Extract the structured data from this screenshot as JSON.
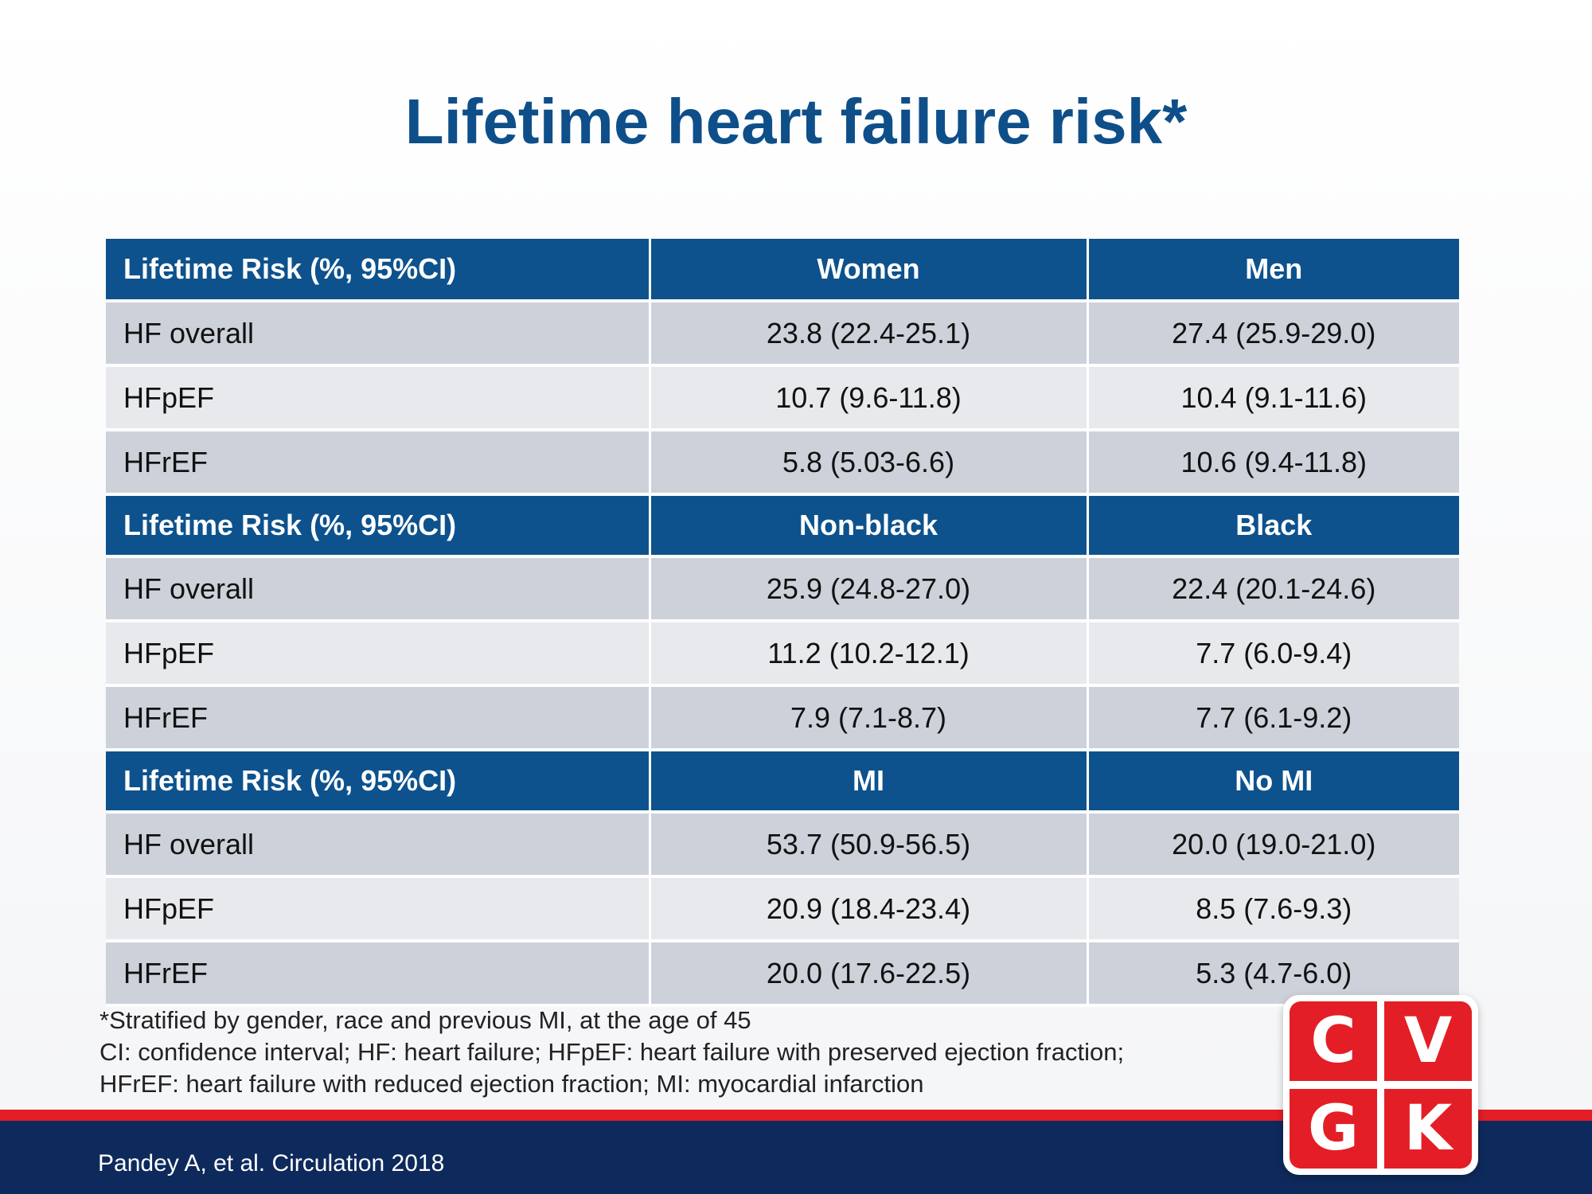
{
  "title": "Lifetime heart failure risk*",
  "table": {
    "sections": [
      {
        "header": [
          "Lifetime Risk (%, 95%CI)",
          "Women",
          "Men"
        ],
        "rows": [
          [
            "HF overall",
            "23.8 (22.4-25.1)",
            "27.4 (25.9-29.0)"
          ],
          [
            "HFpEF",
            "10.7 (9.6-11.8)",
            "10.4 (9.1-11.6)"
          ],
          [
            "HFrEF",
            "5.8 (5.03-6.6)",
            "10.6 (9.4-11.8)"
          ]
        ]
      },
      {
        "header": [
          "Lifetime Risk (%, 95%CI)",
          "Non-black",
          "Black"
        ],
        "rows": [
          [
            "HF overall",
            "25.9 (24.8-27.0)",
            "22.4 (20.1-24.6)"
          ],
          [
            "HFpEF",
            "11.2 (10.2-12.1)",
            "7.7 (6.0-9.4)"
          ],
          [
            "HFrEF",
            "7.9 (7.1-8.7)",
            "7.7 (6.1-9.2)"
          ]
        ]
      },
      {
        "header": [
          "Lifetime Risk (%, 95%CI)",
          "MI",
          "No MI"
        ],
        "rows": [
          [
            "HF overall",
            "53.7 (50.9-56.5)",
            "20.0 (19.0-21.0)"
          ],
          [
            "HFpEF",
            "20.9 (18.4-23.4)",
            "8.5 (7.6-9.3)"
          ],
          [
            "HFrEF",
            "20.0 (17.6-22.5)",
            "5.3 (4.7-6.0)"
          ]
        ]
      }
    ]
  },
  "footnotes": [
    "*Stratified by gender, race and previous MI, at the age of 45",
    "CI: confidence interval;  HF: heart failure;  HFpEF: heart failure with preserved ejection fraction;",
    "HFrEF: heart failure with reduced ejection fraction;  MI:  myocardial infarction"
  ],
  "citation": "Pandey A, et al. Circulation 2018",
  "logo": {
    "letters": [
      "C",
      "V",
      "G",
      "K"
    ]
  },
  "colors": {
    "title": "#0e4f8a",
    "header_bg": "#0d528d",
    "row_dark": "#cdd1da",
    "row_light": "#e8e9ed",
    "accent_red": "#e41e26",
    "footer_navy": "#0e2a5c"
  }
}
